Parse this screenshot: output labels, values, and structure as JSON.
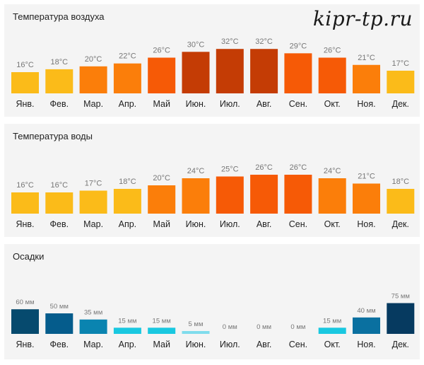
{
  "watermark": "kipr-tp.ru",
  "chart_data": [
    {
      "type": "bar",
      "title": "Температура воздуха",
      "categories": [
        "Янв.",
        "Фев.",
        "Мар.",
        "Апр.",
        "Май",
        "Июн.",
        "Июл.",
        "Авг.",
        "Сен.",
        "Окт.",
        "Ноя.",
        "Дек."
      ],
      "values": [
        16,
        18,
        20,
        22,
        26,
        30,
        32,
        32,
        29,
        26,
        21,
        17
      ],
      "value_labels": [
        "16°C",
        "18°C",
        "20°C",
        "22°C",
        "26°C",
        "30°C",
        "32°C",
        "32°C",
        "29°C",
        "26°C",
        "21°C",
        "17°C"
      ],
      "unit": "°C",
      "colors": [
        "#fbbb19",
        "#fbbb19",
        "#fb7e0a",
        "#fb7e0a",
        "#f65a06",
        "#c43c05",
        "#c43c05",
        "#c43c05",
        "#f65a06",
        "#f65a06",
        "#fb7e0a",
        "#fbbb19"
      ],
      "xlabel": "",
      "ylabel": "",
      "grid": false,
      "legend": "none"
    },
    {
      "type": "bar",
      "title": "Температура воды",
      "categories": [
        "Янв.",
        "Фев.",
        "Мар.",
        "Апр.",
        "Май",
        "Июн.",
        "Июл.",
        "Авг.",
        "Сен.",
        "Окт.",
        "Ноя.",
        "Дек."
      ],
      "values": [
        16,
        16,
        17,
        18,
        20,
        24,
        25,
        26,
        26,
        24,
        21,
        18
      ],
      "value_labels": [
        "16°C",
        "16°C",
        "17°C",
        "18°C",
        "20°C",
        "24°C",
        "25°C",
        "26°C",
        "26°C",
        "24°C",
        "21°C",
        "18°C"
      ],
      "unit": "°C",
      "colors": [
        "#fbbb19",
        "#fbbb19",
        "#fbbb19",
        "#fbbb19",
        "#fb7e0a",
        "#fb7e0a",
        "#f65a06",
        "#f65a06",
        "#f65a06",
        "#fb7e0a",
        "#fb7e0a",
        "#fbbb19"
      ],
      "xlabel": "",
      "ylabel": "",
      "grid": false,
      "legend": "none"
    },
    {
      "type": "bar",
      "title": "Осадки",
      "categories": [
        "Янв.",
        "Фев.",
        "Мар.",
        "Апр.",
        "Май",
        "Июн.",
        "Июл.",
        "Авг.",
        "Сен.",
        "Окт.",
        "Ноя.",
        "Дек."
      ],
      "values": [
        60,
        50,
        35,
        15,
        15,
        5,
        0,
        0,
        0,
        15,
        40,
        75
      ],
      "value_labels": [
        "60 мм",
        "50 мм",
        "35 мм",
        "15 мм",
        "15 мм",
        "5 мм",
        "0 мм",
        "0 мм",
        "0 мм",
        "15 мм",
        "40 мм",
        "75 мм"
      ],
      "unit": "мм",
      "colors": [
        "#064a6e",
        "#055c8c",
        "#0a84b0",
        "#19c8e0",
        "#19c8e0",
        "#7fdcec",
        "#19c8e0",
        "#19c8e0",
        "#19c8e0",
        "#19c8e0",
        "#0a70a0",
        "#063a60"
      ],
      "xlabel": "",
      "ylabel": "",
      "grid": false,
      "legend": "none"
    }
  ]
}
